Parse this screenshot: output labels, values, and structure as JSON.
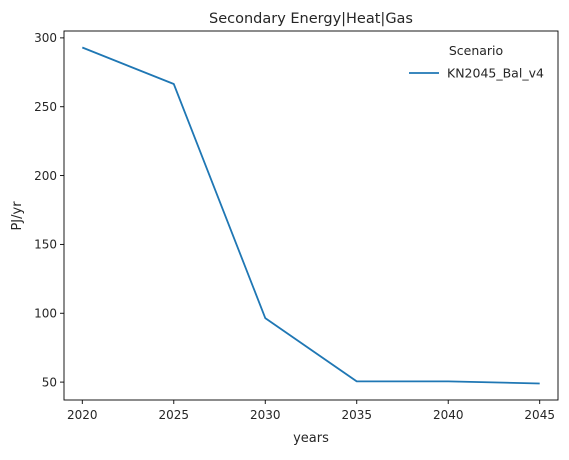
{
  "chart_data": {
    "type": "line",
    "title": "Secondary Energy|Heat|Gas",
    "xlabel": "years",
    "ylabel": "PJ/yr",
    "x": [
      2020,
      2025,
      2030,
      2035,
      2040,
      2045
    ],
    "series": [
      {
        "name": "KN2045_Bal_v4",
        "values": [
          293,
          266.5,
          96.5,
          50.5,
          50.5,
          49
        ],
        "color": "#1f77b4"
      }
    ],
    "xticks": [
      2020,
      2025,
      2030,
      2035,
      2040,
      2045
    ],
    "yticks": [
      50,
      100,
      150,
      200,
      250,
      300
    ],
    "xlim": [
      2019,
      2046
    ],
    "ylim": [
      37,
      305
    ],
    "grid": false,
    "legend": {
      "title": "Scenario",
      "placement": "top-right"
    }
  }
}
